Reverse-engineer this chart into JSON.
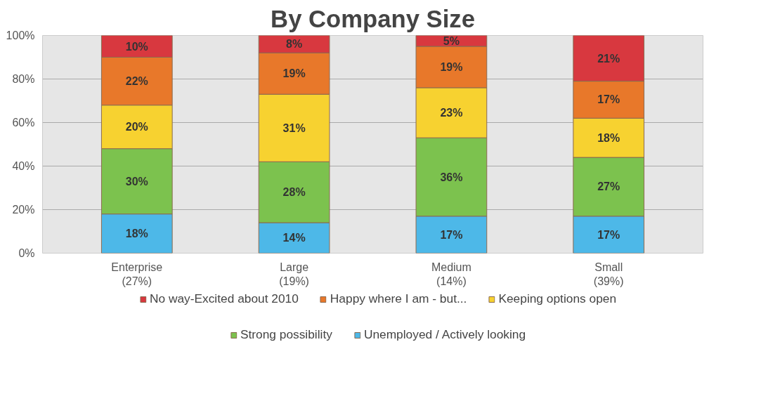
{
  "chart_data": {
    "type": "bar",
    "title": "By Company Size",
    "stacked": true,
    "categories": [
      "Enterprise\n(27%)",
      "Large\n(19%)",
      "Medium\n(14%)",
      "Small\n(39%)"
    ],
    "series": [
      {
        "name": "Unemployed / Actively looking",
        "color": "#4db8e8",
        "values": [
          18,
          14,
          17,
          17
        ],
        "value_labels": [
          "18%",
          "14%",
          "17%",
          "17%"
        ]
      },
      {
        "name": "Strong possibility",
        "color": "#7cc24e",
        "values": [
          30,
          28,
          36,
          27
        ],
        "value_labels": [
          "30%",
          "28%",
          "36%",
          "27%"
        ]
      },
      {
        "name": "Keeping options open",
        "color": "#f7d230",
        "values": [
          20,
          31,
          23,
          18
        ],
        "value_labels": [
          "20%",
          "31%",
          "23%",
          "18%"
        ]
      },
      {
        "name": "Happy where I am - but...",
        "color": "#e8782a",
        "values": [
          22,
          19,
          19,
          17
        ],
        "value_labels": [
          "22%",
          "19%",
          "19%",
          "17%"
        ]
      },
      {
        "name": "No way-Excited about 2010",
        "color": "#d8383f",
        "values": [
          10,
          8,
          5,
          21
        ],
        "value_labels": [
          "10%",
          "8%",
          "5%",
          "21%"
        ]
      }
    ],
    "ylim": [
      0,
      100
    ],
    "yticks": [
      {
        "value": 0,
        "label": "0%"
      },
      {
        "value": 20,
        "label": "20%"
      },
      {
        "value": 40,
        "label": "40%"
      },
      {
        "value": 60,
        "label": "60%"
      },
      {
        "value": 80,
        "label": "80%"
      },
      {
        "value": 100,
        "label": "100%"
      }
    ],
    "grid": "y",
    "legend": "bottom"
  }
}
